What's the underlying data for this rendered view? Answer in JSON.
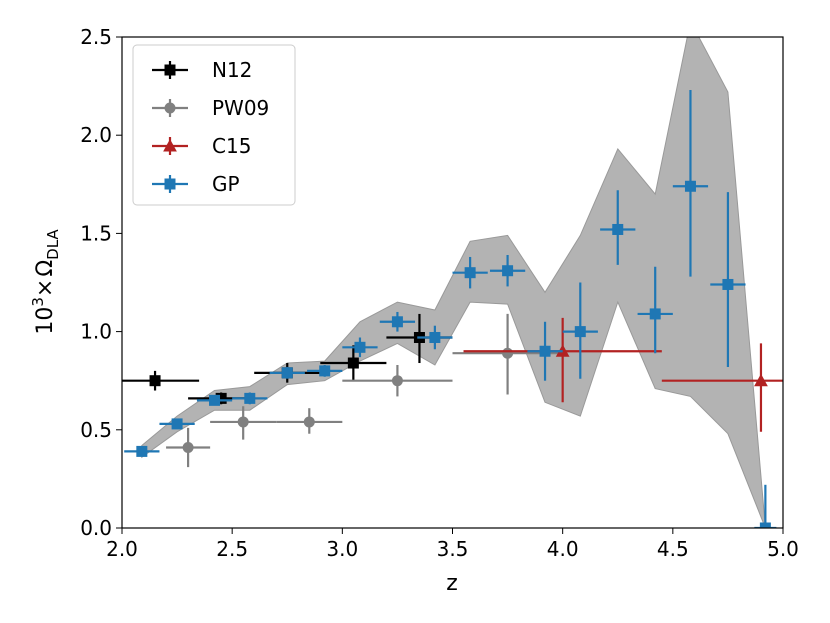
{
  "chart_data": {
    "type": "scatter",
    "title": "",
    "xlabel": "z",
    "ylabel": {
      "base": "10",
      "exp": "3",
      "times": "×",
      "omega": "Ω",
      "sub": "DLA"
    },
    "xlim": [
      2.0,
      5.0
    ],
    "ylim": [
      0.0,
      2.5
    ],
    "xticks": [
      2.0,
      2.5,
      3.0,
      3.5,
      4.0,
      4.5,
      5.0
    ],
    "xtick_labels": [
      "2.0",
      "2.5",
      "3.0",
      "3.5",
      "4.0",
      "4.5",
      "5.0"
    ],
    "yticks": [
      0.0,
      0.5,
      1.0,
      1.5,
      2.0,
      2.5
    ],
    "ytick_labels": [
      "0.0",
      "0.5",
      "1.0",
      "1.5",
      "2.0",
      "2.5"
    ],
    "grid": false,
    "legend_position": "top-left",
    "band": {
      "color": "#b3b3b3",
      "edge_color": "#999999",
      "x": [
        2.09,
        2.25,
        2.42,
        2.58,
        2.75,
        2.92,
        3.08,
        3.25,
        3.42,
        3.58,
        3.75,
        3.92,
        4.08,
        4.25,
        4.42,
        4.58,
        4.75,
        4.92
      ],
      "upper": [
        0.42,
        0.57,
        0.7,
        0.72,
        0.84,
        0.85,
        1.05,
        1.15,
        1.11,
        1.46,
        1.49,
        1.2,
        1.49,
        1.93,
        1.7,
        2.58,
        2.22,
        0.0
      ],
      "lower": [
        0.36,
        0.49,
        0.6,
        0.6,
        0.73,
        0.75,
        0.85,
        0.94,
        0.83,
        1.15,
        1.14,
        0.64,
        0.57,
        1.15,
        0.71,
        0.67,
        0.48,
        0.0
      ]
    },
    "series": [
      {
        "name": "N12",
        "color": "#000000",
        "marker": "square",
        "points": [
          {
            "x": 2.15,
            "y": 0.75,
            "xerr": [
              0.15,
              0.2
            ],
            "yerr": [
              0.05,
              0.05
            ]
          },
          {
            "x": 2.45,
            "y": 0.66,
            "xerr": [
              0.15,
              0.15
            ],
            "yerr": [
              0.03,
              0.03
            ]
          },
          {
            "x": 2.75,
            "y": 0.79,
            "xerr": [
              0.15,
              0.15
            ],
            "yerr": [
              0.05,
              0.05
            ]
          },
          {
            "x": 3.05,
            "y": 0.84,
            "xerr": [
              0.15,
              0.15
            ],
            "yerr": [
              0.09,
              0.09
            ]
          },
          {
            "x": 3.35,
            "y": 0.97,
            "xerr": [
              0.15,
              0.15
            ],
            "yerr": [
              0.13,
              0.12
            ]
          }
        ]
      },
      {
        "name": "PW09",
        "color": "#808080",
        "marker": "circle",
        "points": [
          {
            "x": 2.3,
            "y": 0.41,
            "xerr": [
              0.1,
              0.1
            ],
            "yerr": [
              0.1,
              0.1
            ]
          },
          {
            "x": 2.55,
            "y": 0.54,
            "xerr": [
              0.15,
              0.15
            ],
            "yerr": [
              0.09,
              0.08
            ]
          },
          {
            "x": 2.85,
            "y": 0.54,
            "xerr": [
              0.15,
              0.15
            ],
            "yerr": [
              0.06,
              0.07
            ]
          },
          {
            "x": 3.25,
            "y": 0.75,
            "xerr": [
              0.25,
              0.25
            ],
            "yerr": [
              0.08,
              0.08
            ]
          },
          {
            "x": 3.75,
            "y": 0.89,
            "xerr": [
              0.25,
              0.25
            ],
            "yerr": [
              0.21,
              0.2
            ]
          }
        ]
      },
      {
        "name": "C15",
        "color": "#b22222",
        "marker": "triangle",
        "points": [
          {
            "x": 4.0,
            "y": 0.9,
            "xerr": [
              0.45,
              0.45
            ],
            "yerr": [
              0.26,
              0.17
            ]
          },
          {
            "x": 4.9,
            "y": 0.75,
            "xerr": [
              0.45,
              0.45
            ],
            "yerr": [
              0.26,
              0.19
            ]
          }
        ]
      },
      {
        "name": "GP",
        "color": "#1f77b4",
        "marker": "square",
        "points": [
          {
            "x": 2.09,
            "y": 0.39,
            "xerr": [
              0.08,
              0.08
            ],
            "yerr": [
              0.02,
              0.02
            ]
          },
          {
            "x": 2.25,
            "y": 0.53,
            "xerr": [
              0.08,
              0.08
            ],
            "yerr": [
              0.02,
              0.02
            ]
          },
          {
            "x": 2.42,
            "y": 0.65,
            "xerr": [
              0.08,
              0.08
            ],
            "yerr": [
              0.02,
              0.02
            ]
          },
          {
            "x": 2.58,
            "y": 0.66,
            "xerr": [
              0.08,
              0.08
            ],
            "yerr": [
              0.03,
              0.03
            ]
          },
          {
            "x": 2.75,
            "y": 0.79,
            "xerr": [
              0.08,
              0.08
            ],
            "yerr": [
              0.03,
              0.03
            ]
          },
          {
            "x": 2.92,
            "y": 0.8,
            "xerr": [
              0.08,
              0.08
            ],
            "yerr": [
              0.03,
              0.03
            ]
          },
          {
            "x": 3.08,
            "y": 0.92,
            "xerr": [
              0.08,
              0.08
            ],
            "yerr": [
              0.05,
              0.05
            ]
          },
          {
            "x": 3.25,
            "y": 1.05,
            "xerr": [
              0.08,
              0.08
            ],
            "yerr": [
              0.05,
              0.05
            ]
          },
          {
            "x": 3.42,
            "y": 0.97,
            "xerr": [
              0.08,
              0.08
            ],
            "yerr": [
              0.06,
              0.06
            ]
          },
          {
            "x": 3.58,
            "y": 1.3,
            "xerr": [
              0.08,
              0.08
            ],
            "yerr": [
              0.08,
              0.08
            ]
          },
          {
            "x": 3.75,
            "y": 1.31,
            "xerr": [
              0.08,
              0.08
            ],
            "yerr": [
              0.08,
              0.08
            ]
          },
          {
            "x": 3.92,
            "y": 0.9,
            "xerr": [
              0.08,
              0.08
            ],
            "yerr": [
              0.15,
              0.15
            ]
          },
          {
            "x": 4.08,
            "y": 1.0,
            "xerr": [
              0.08,
              0.08
            ],
            "yerr": [
              0.24,
              0.25
            ]
          },
          {
            "x": 4.25,
            "y": 1.52,
            "xerr": [
              0.08,
              0.08
            ],
            "yerr": [
              0.18,
              0.2
            ]
          },
          {
            "x": 4.42,
            "y": 1.09,
            "xerr": [
              0.08,
              0.08
            ],
            "yerr": [
              0.2,
              0.24
            ]
          },
          {
            "x": 4.58,
            "y": 1.74,
            "xerr": [
              0.08,
              0.08
            ],
            "yerr": [
              0.46,
              0.49
            ]
          },
          {
            "x": 4.75,
            "y": 1.24,
            "xerr": [
              0.08,
              0.08
            ],
            "yerr": [
              0.42,
              0.47
            ]
          },
          {
            "x": 4.92,
            "y": 0.0,
            "xerr": [
              0.05,
              0.05
            ],
            "yerr": [
              0.0,
              0.22
            ]
          }
        ]
      }
    ]
  }
}
